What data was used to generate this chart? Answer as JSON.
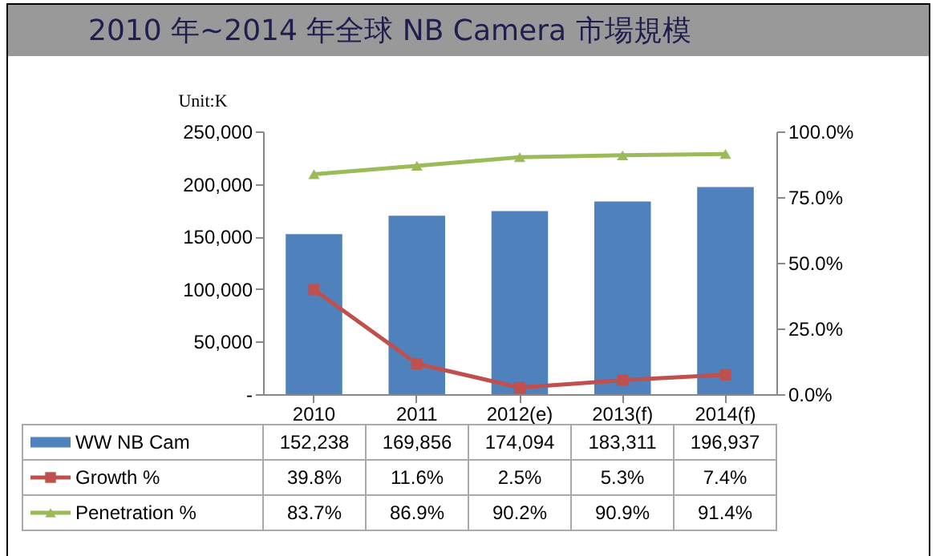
{
  "chart_data": {
    "type": "bar",
    "title": "2010 年~2014 年全球 NB Camera 市場規模",
    "ylabel": "Unit:K",
    "categories": [
      "2010",
      "2011",
      "2012(e)",
      "2013(f)",
      "2014(f)"
    ],
    "ylim": [
      0,
      250000
    ],
    "yticks": [
      {
        "value": 0,
        "label": "-"
      },
      {
        "value": 50000,
        "label": "50,000"
      },
      {
        "value": 100000,
        "label": "100,000"
      },
      {
        "value": 150000,
        "label": "150,000"
      },
      {
        "value": 200000,
        "label": "200,000"
      },
      {
        "value": 250000,
        "label": "250,000"
      }
    ],
    "y2lim": [
      0,
      100
    ],
    "y2ticks": [
      {
        "value": 0,
        "label": "0.0%"
      },
      {
        "value": 25,
        "label": "25.0%"
      },
      {
        "value": 50,
        "label": "50.0%"
      },
      {
        "value": 75,
        "label": "75.0%"
      },
      {
        "value": 100,
        "label": "100.0%"
      }
    ],
    "legend": "bottom",
    "grid": false,
    "series": [
      {
        "name": "WW NB Cam",
        "color": "#4f81bd",
        "values": [
          152238,
          169856,
          174094,
          183311,
          196937
        ],
        "value_labels": [
          "152,238",
          "169,856",
          "174,094",
          "183,311",
          "196,937"
        ]
      },
      {
        "name": "Growth %",
        "type": "line",
        "axis": "y2",
        "marker": "square",
        "color": "#c0504d",
        "values": [
          39.8,
          11.6,
          2.5,
          5.3,
          7.4
        ],
        "value_labels": [
          "39.8%",
          "11.6%",
          "2.5%",
          "5.3%",
          "7.4%"
        ]
      },
      {
        "name": "Penetration %",
        "type": "line",
        "axis": "y2",
        "marker": "triangle",
        "color": "#9bbb59",
        "values": [
          83.7,
          86.9,
          90.2,
          90.9,
          91.4
        ],
        "value_labels": [
          "83.7%",
          "86.9%",
          "90.2%",
          "90.9%",
          "91.4%"
        ]
      }
    ]
  }
}
